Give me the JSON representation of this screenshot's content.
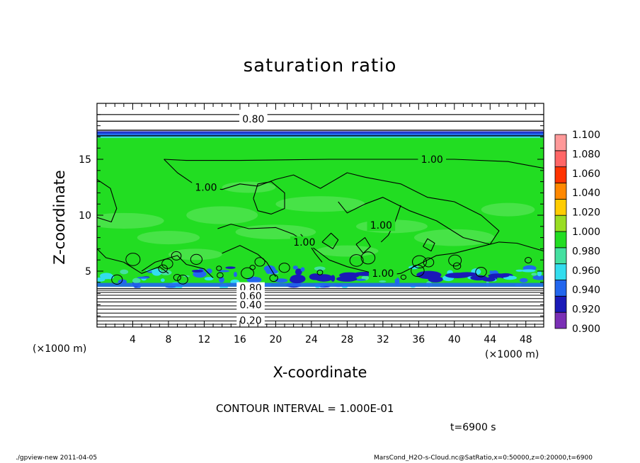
{
  "chart_data": {
    "type": "heatmap",
    "title": "saturation ratio",
    "xlabel": "X-coordinate",
    "ylabel": "Z-coordinate",
    "x_unit_label": "(×1000 m)",
    "y_unit_label": "(×1000 m)",
    "xlim": [
      0,
      50
    ],
    "ylim": [
      0,
      20
    ],
    "x_ticks": [
      4,
      8,
      12,
      16,
      20,
      24,
      28,
      32,
      36,
      40,
      44,
      48
    ],
    "y_ticks": [
      5,
      10,
      15
    ],
    "colorbar": {
      "levels": [
        "0.900",
        "0.920",
        "0.940",
        "0.960",
        "0.980",
        "1.000",
        "1.020",
        "1.040",
        "1.060",
        "1.080",
        "1.100"
      ],
      "colors": [
        "#7a2fb5",
        "#1a1ab8",
        "#2266ee",
        "#33ddee",
        "#44e0a0",
        "#22dd22",
        "#99dd22",
        "#ffcc00",
        "#ff8800",
        "#ff3300",
        "#ff6666",
        "#ff9999"
      ]
    },
    "regions": [
      {
        "z_range": [
          0,
          3.5
        ],
        "value": "< 0.900",
        "note": "white band with closely spaced contours"
      },
      {
        "z_range": [
          3.5,
          17.2
        ],
        "value": "≈ 1.000"
      },
      {
        "z_range": [
          17.0,
          17.5
        ],
        "value": "0.900–0.960"
      },
      {
        "z_range": [
          17.5,
          20
        ],
        "value": "< 0.900"
      }
    ],
    "contour_labels": [
      {
        "label": "0.80",
        "x": 17.5,
        "z": 18.6
      },
      {
        "label": "1.00",
        "x": 37.5,
        "z": 15.0
      },
      {
        "label": "1.00",
        "x": 12.2,
        "z": 12.5
      },
      {
        "label": "1.00",
        "x": 23.2,
        "z": 7.6
      },
      {
        "label": "1.00",
        "x": 31.8,
        "z": 9.1
      },
      {
        "label": "1.00",
        "x": 32.0,
        "z": 4.8
      },
      {
        "label": "0.80",
        "x": 17.2,
        "z": 3.5
      },
      {
        "label": "0.60",
        "x": 17.2,
        "z": 2.8
      },
      {
        "label": "0.40",
        "x": 17.2,
        "z": 2.0
      },
      {
        "label": "0.20",
        "x": 17.2,
        "z": 0.6
      }
    ],
    "contour_interval": "CONTOUR INTERVAL = 1.000E-01",
    "time_label": "t=6900 s"
  },
  "footer": {
    "left": "./gpview-new   2011-04-05",
    "right": "MarsCond_H2O-s-Cloud.nc@SatRatio,x=0:50000,z=0:20000,t=6900"
  }
}
